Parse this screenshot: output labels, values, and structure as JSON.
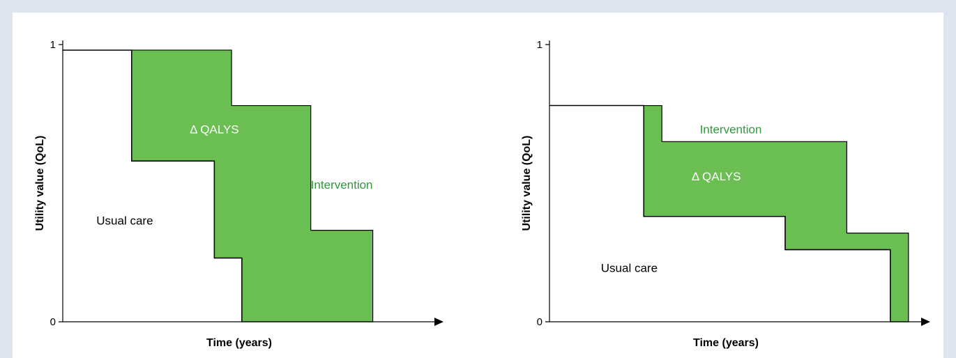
{
  "colors": {
    "background": "#dde6ef",
    "panel": "#ffffff",
    "qaly_fill": "#6abe52",
    "intervention_text": "#2e9a3c",
    "delta_text": "#ffffff",
    "usual_care_line": "#000000"
  },
  "chart_data": [
    {
      "type": "area",
      "xlabel": "Time (years)",
      "ylabel": "Utility value (QoL)",
      "yticks": [
        "0",
        "1"
      ],
      "ylim": [
        0,
        1
      ],
      "x_domain": [
        0,
        1
      ],
      "grid": false,
      "series": [
        {
          "name": "Usual care",
          "steps": [
            [
              0,
              0.98
            ],
            [
              0.2,
              0.58
            ],
            [
              0.44,
              0.23
            ],
            [
              0.52,
              0
            ]
          ]
        },
        {
          "name": "Intervention",
          "steps": [
            [
              0.2,
              0.98
            ],
            [
              0.49,
              0.78
            ],
            [
              0.72,
              0.33
            ],
            [
              0.9,
              0
            ]
          ]
        }
      ],
      "annotations": [
        {
          "text": "Δ QALYS",
          "x": 0.44,
          "y": 0.68,
          "role": "delta"
        },
        {
          "text": "Intervention",
          "x": 0.72,
          "y": 0.48,
          "role": "intervention"
        },
        {
          "text": "Usual care",
          "x": 0.18,
          "y": 0.35,
          "role": "usual"
        }
      ]
    },
    {
      "type": "area",
      "xlabel": "Time (years)",
      "ylabel": "Utility value (QoL)",
      "yticks": [
        "0",
        "1"
      ],
      "ylim": [
        0,
        1
      ],
      "x_domain": [
        0,
        1
      ],
      "grid": false,
      "series": [
        {
          "name": "Usual care",
          "steps": [
            [
              0,
              0.78
            ],
            [
              0.26,
              0.38
            ],
            [
              0.65,
              0.26
            ],
            [
              0.94,
              0
            ]
          ]
        },
        {
          "name": "Intervention",
          "steps": [
            [
              0.26,
              0.78
            ],
            [
              0.31,
              0.65
            ],
            [
              0.82,
              0.32
            ],
            [
              0.99,
              0
            ]
          ]
        }
      ],
      "annotations": [
        {
          "text": "Intervention",
          "x": 0.5,
          "y": 0.68,
          "role": "intervention"
        },
        {
          "text": "Δ QALYS",
          "x": 0.46,
          "y": 0.51,
          "role": "delta"
        },
        {
          "text": "Usual care",
          "x": 0.22,
          "y": 0.18,
          "role": "usual"
        }
      ]
    }
  ]
}
